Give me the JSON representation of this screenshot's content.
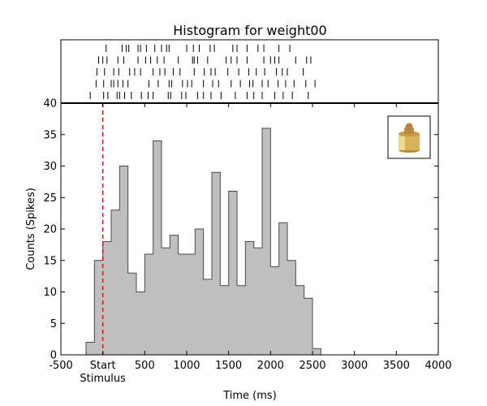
{
  "chart_data": {
    "type": "bar",
    "title": "Histogram for weight00",
    "xlabel": "Time (ms)",
    "ylabel": "Counts (Spikes)",
    "xlim": [
      -500,
      4000
    ],
    "ylim": [
      0,
      40
    ],
    "x_ticks": [
      {
        "value": -500,
        "label": "-500"
      },
      {
        "value": 0,
        "label": "Start"
      },
      {
        "value": 500,
        "label": "500"
      },
      {
        "value": 1000,
        "label": "1000"
      },
      {
        "value": 1500,
        "label": "1500"
      },
      {
        "value": 2000,
        "label": "2000"
      },
      {
        "value": 2500,
        "label": "2500"
      },
      {
        "value": 3000,
        "label": "3000"
      },
      {
        "value": 3500,
        "label": "3500"
      },
      {
        "value": 4000,
        "label": "4000"
      }
    ],
    "y_ticks": [
      0,
      5,
      10,
      15,
      20,
      25,
      30,
      35,
      40
    ],
    "stimulus": {
      "time": 0,
      "label": "Stimulus",
      "color": "#e00000"
    },
    "bin_width": 100,
    "bin_starts": [
      -200,
      -100,
      0,
      100,
      200,
      300,
      400,
      500,
      600,
      700,
      800,
      900,
      1000,
      1100,
      1200,
      1300,
      1400,
      1500,
      1600,
      1700,
      1800,
      1900,
      2000,
      2100,
      2200,
      2300,
      2400,
      2500
    ],
    "values": [
      2,
      15,
      18,
      23,
      30,
      13,
      10,
      16,
      34,
      17,
      19,
      16,
      16,
      20,
      12,
      29,
      11,
      26,
      11,
      18,
      17,
      36,
      14,
      21,
      15,
      11,
      9,
      1
    ],
    "raster_trials": [
      [
        40,
        230,
        280,
        310,
        420,
        450,
        520,
        620,
        700,
        760,
        790,
        1000,
        1080,
        1150,
        1280,
        1330,
        1550,
        1600,
        1720,
        1850,
        1920,
        2100,
        2230
      ],
      [
        -50,
        0,
        50,
        180,
        250,
        420,
        510,
        570,
        650,
        730,
        900,
        1070,
        1090,
        1130,
        1250,
        1470,
        1530,
        1600,
        1720,
        1920,
        2000,
        2050,
        2100,
        2300,
        2430,
        2480
      ],
      [
        -70,
        20,
        130,
        190,
        320,
        380,
        450,
        600,
        680,
        740,
        840,
        920,
        1090,
        1210,
        1290,
        1340,
        1490,
        1620,
        1740,
        1830,
        1930,
        2070,
        2140,
        2200,
        2390
      ],
      [
        -80,
        10,
        100,
        130,
        180,
        240,
        300,
        550,
        660,
        790,
        820,
        950,
        1010,
        1060,
        1200,
        1310,
        1380,
        1530,
        1640,
        1750,
        1790,
        1900,
        1970,
        2090,
        2180,
        2280,
        2420,
        2530
      ],
      [
        -150,
        10,
        60,
        170,
        200,
        260,
        340,
        460,
        540,
        600,
        780,
        810,
        940,
        990,
        1130,
        1200,
        1290,
        1410,
        1580,
        1720,
        1800,
        1900,
        2050,
        2150,
        2260,
        2450
      ]
    ],
    "colors": {
      "bar_fill": "#bfbfbf",
      "bar_edge": "#4a4a4a",
      "stimulus_line": "#e00000"
    },
    "grid": false,
    "inset_icon": "brass-weight-icon"
  }
}
